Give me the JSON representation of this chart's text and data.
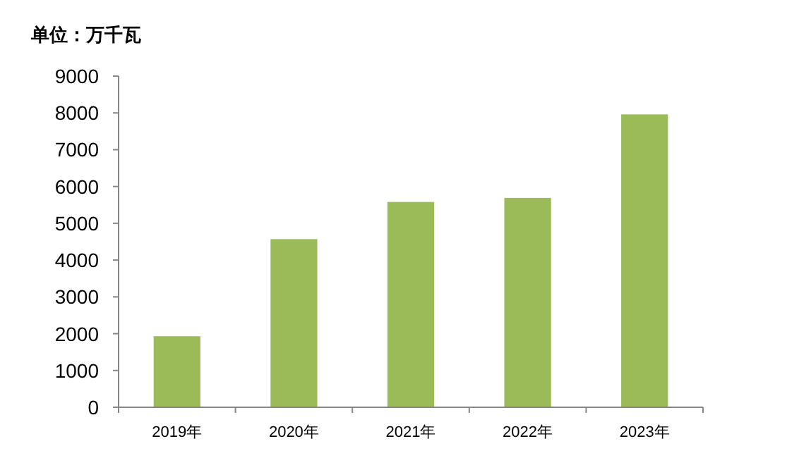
{
  "chart_data": {
    "type": "bar",
    "ylabel": "单位：万千瓦",
    "categories": [
      "2019年",
      "2020年",
      "2021年",
      "2022年",
      "2023年"
    ],
    "values": [
      1930,
      4570,
      5580,
      5690,
      7960
    ],
    "color": "#9bbb59",
    "ylim": [
      0,
      9000
    ],
    "yticks": [
      0,
      1000,
      2000,
      3000,
      4000,
      5000,
      6000,
      7000,
      8000,
      9000
    ]
  }
}
